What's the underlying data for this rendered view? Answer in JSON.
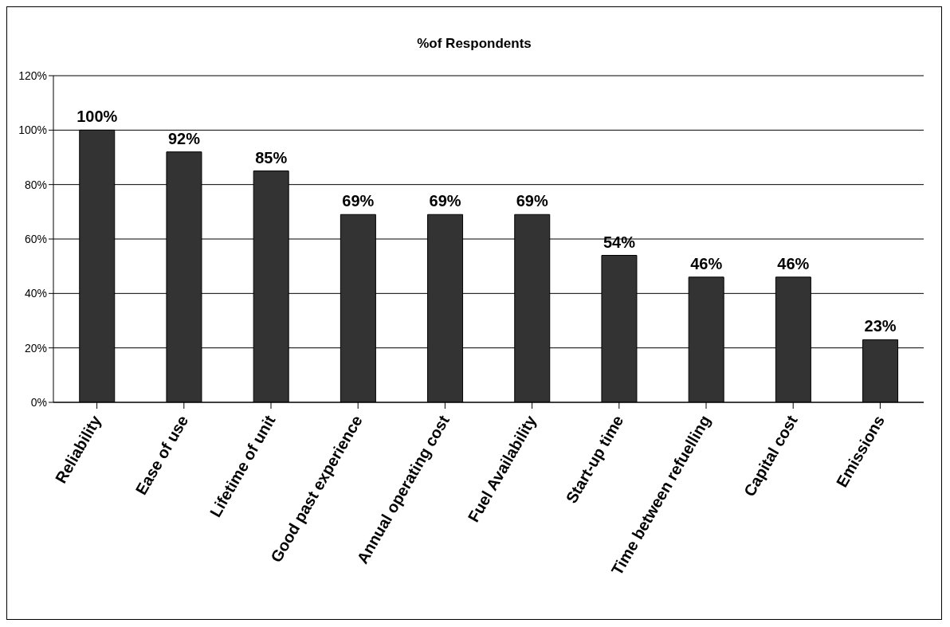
{
  "chart_data": {
    "type": "bar",
    "title": "%of Respondents",
    "categories": [
      "Reliability",
      "Ease of use",
      "Lifetime of unit",
      "Good past experience",
      "Annual operating cost",
      "Fuel Availability",
      "Start-up time",
      "Time between refuelling",
      "Capital cost",
      "Emissions"
    ],
    "values": [
      100,
      92,
      85,
      69,
      69,
      69,
      54,
      46,
      46,
      23
    ],
    "value_labels": [
      "100%",
      "92%",
      "85%",
      "69%",
      "69%",
      "69%",
      "54%",
      "46%",
      "46%",
      "23%"
    ],
    "color": "#333333",
    "ylim": [
      0,
      120
    ],
    "yticks": [
      {
        "value": 0,
        "label": "0%"
      },
      {
        "value": 20,
        "label": "20%"
      },
      {
        "value": 40,
        "label": "40%"
      },
      {
        "value": 60,
        "label": "60%"
      },
      {
        "value": 80,
        "label": "80%"
      },
      {
        "value": 100,
        "label": "100%"
      },
      {
        "value": 120,
        "label": "120%"
      }
    ],
    "grid": "y"
  }
}
